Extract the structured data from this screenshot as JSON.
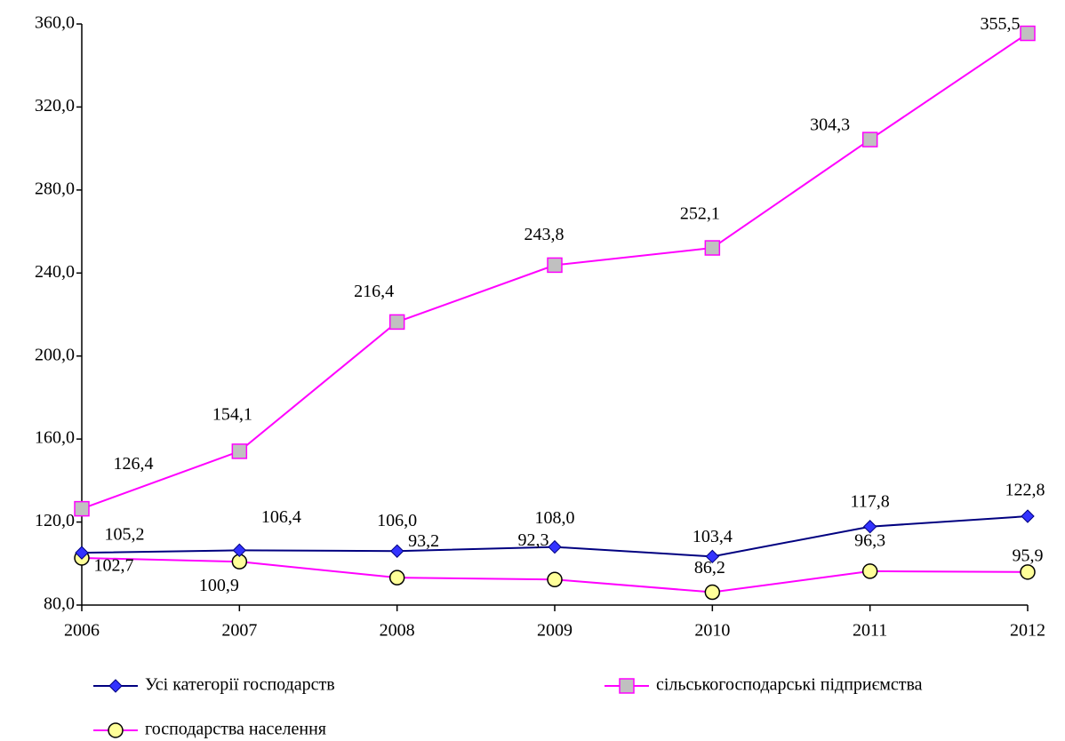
{
  "chart_data": {
    "type": "line",
    "categories": [
      "2006",
      "2007",
      "2008",
      "2009",
      "2010",
      "2011",
      "2012"
    ],
    "series": [
      {
        "name": "Усі категорії господарств",
        "color": "#000080",
        "marker": "diamond",
        "marker_color": "#3333ff",
        "values": [
          105.2,
          106.4,
          106.0,
          108.0,
          103.4,
          117.8,
          122.8
        ],
        "value_labels": [
          "105,2",
          "106,4",
          "106,0",
          "108,0",
          "103,4",
          "117,8",
          "122,8"
        ]
      },
      {
        "name": "сільськогосподарські підприємства",
        "color": "#ff00ff",
        "marker": "square",
        "marker_color": "#c0c0c0",
        "values": [
          126.4,
          154.1,
          216.4,
          243.8,
          252.1,
          304.3,
          355.5
        ],
        "value_labels": [
          "126,4",
          "154,1",
          "216,4",
          "243,8",
          "252,1",
          "304,3",
          "355,5"
        ]
      },
      {
        "name": "господарства населення",
        "color": "#ff00ff",
        "marker": "circle",
        "marker_color": "#ffff99",
        "values": [
          102.7,
          100.9,
          93.2,
          92.3,
          86.2,
          96.3,
          95.9
        ],
        "value_labels": [
          "102,7",
          "100,9",
          "93,2",
          "92,3",
          "86,2",
          "96,3",
          "95,9"
        ]
      }
    ],
    "ylim": [
      80,
      360
    ],
    "yticks": [
      {
        "value": 80,
        "label": "80,0"
      },
      {
        "value": 120,
        "label": "120,0"
      },
      {
        "value": 160,
        "label": "160,0"
      },
      {
        "value": 200,
        "label": "200,0"
      },
      {
        "value": 240,
        "label": "240,0"
      },
      {
        "value": 280,
        "label": "280,0"
      },
      {
        "value": 320,
        "label": "320,0"
      },
      {
        "value": 360,
        "label": "360,0"
      }
    ],
    "grid": false,
    "legend": "bottom"
  }
}
